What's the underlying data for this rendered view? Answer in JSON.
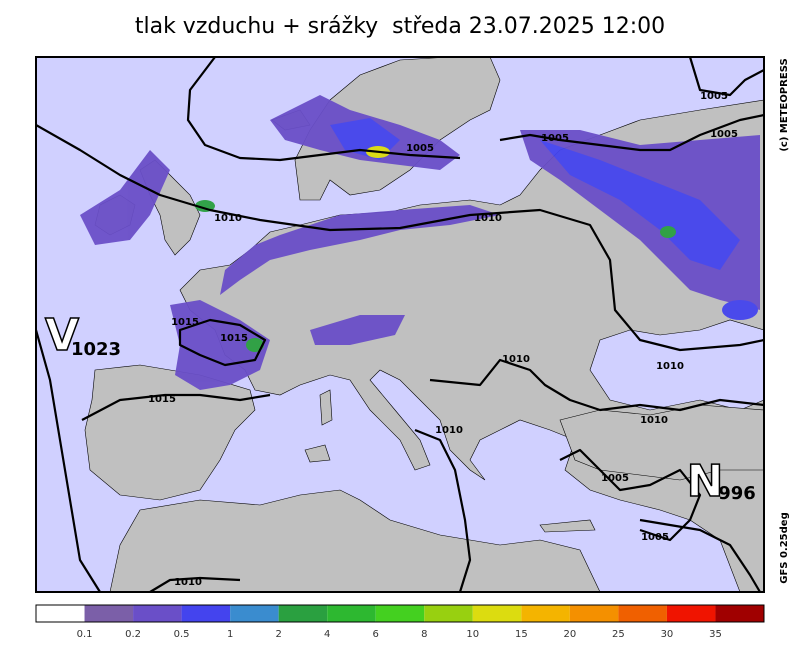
{
  "header": {
    "title": "tlak vzduchu + srážky  středa 23.07.2025 12:00"
  },
  "map": {
    "credits": [
      "(c) METEOPRESS",
      "GFS 0.25deg"
    ],
    "centers": [
      {
        "letter": "V",
        "pressure": "1023"
      },
      {
        "letter": "N",
        "pressure": "996"
      }
    ],
    "isobar_labels": [
      "1010",
      "1005",
      "1010",
      "1005",
      "1005",
      "1005",
      "1015",
      "1015",
      "1015",
      "1010",
      "1010",
      "1010",
      "1010",
      "1005",
      "1005",
      "1010"
    ]
  },
  "colorbar": {
    "colors": [
      "#ffffff",
      "#7b5fa8",
      "#6a4fc8",
      "#4444ee",
      "#3a8ccf",
      "#2aa040",
      "#2db830",
      "#44d020",
      "#98d010",
      "#dcdc10",
      "#f4b400",
      "#f49000",
      "#f06000",
      "#f01400",
      "#a00000"
    ],
    "labels": [
      "0.1",
      "0.2",
      "0.5",
      "1",
      "2",
      "4",
      "6",
      "8",
      "10",
      "15",
      "20",
      "25",
      "30",
      "35"
    ]
  }
}
